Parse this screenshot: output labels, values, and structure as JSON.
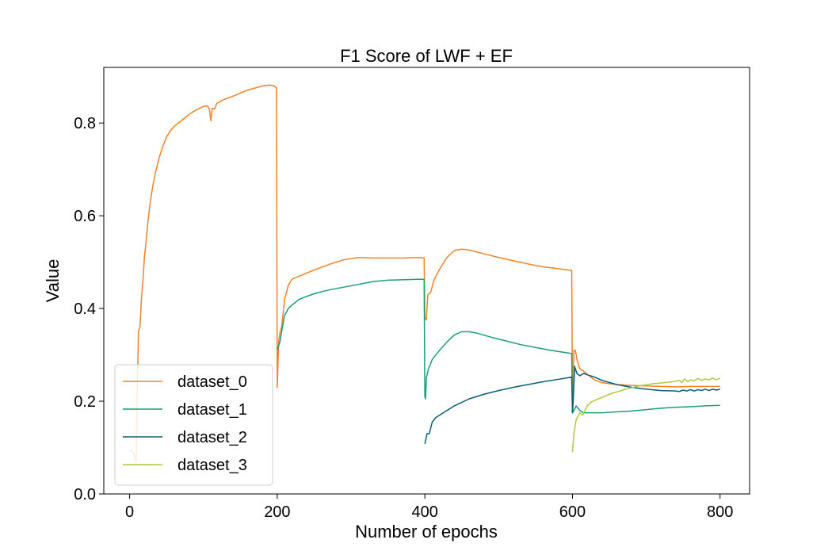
{
  "chart_data": {
    "type": "line",
    "title": "F1 Score of LWF + EF",
    "xlabel": "Number of epochs",
    "ylabel": "Value",
    "xlim": [
      -35,
      840
    ],
    "ylim": [
      0.0,
      0.92
    ],
    "xticks": [
      0,
      200,
      400,
      600,
      800
    ],
    "yticks": [
      0.0,
      0.2,
      0.4,
      0.6,
      0.8
    ],
    "xtick_labels": [
      "0",
      "200",
      "400",
      "600",
      "800"
    ],
    "ytick_labels": [
      "0.0",
      "0.2",
      "0.4",
      "0.6",
      "0.8"
    ],
    "grid": false,
    "legend_position": "lower-left",
    "series": [
      {
        "name": "dataset_0",
        "color": "#f28226",
        "points": [
          [
            0,
            0.09
          ],
          [
            3,
            0.095
          ],
          [
            6,
            0.085
          ],
          [
            9,
            0.07
          ],
          [
            10,
            0.2
          ],
          [
            12,
            0.35
          ],
          [
            14,
            0.36
          ],
          [
            16,
            0.42
          ],
          [
            18,
            0.46
          ],
          [
            20,
            0.51
          ],
          [
            22,
            0.54
          ],
          [
            25,
            0.59
          ],
          [
            28,
            0.63
          ],
          [
            32,
            0.67
          ],
          [
            36,
            0.7
          ],
          [
            40,
            0.725
          ],
          [
            45,
            0.75
          ],
          [
            50,
            0.77
          ],
          [
            55,
            0.783
          ],
          [
            60,
            0.792
          ],
          [
            70,
            0.805
          ],
          [
            80,
            0.818
          ],
          [
            90,
            0.828
          ],
          [
            100,
            0.836
          ],
          [
            105,
            0.837
          ],
          [
            108,
            0.831
          ],
          [
            110,
            0.805
          ],
          [
            112,
            0.832
          ],
          [
            115,
            0.83
          ],
          [
            118,
            0.842
          ],
          [
            125,
            0.849
          ],
          [
            140,
            0.858
          ],
          [
            160,
            0.871
          ],
          [
            180,
            0.88
          ],
          [
            190,
            0.882
          ],
          [
            196,
            0.88
          ],
          [
            199,
            0.875
          ],
          [
            200,
            0.23
          ],
          [
            202,
            0.33
          ],
          [
            204,
            0.35
          ],
          [
            206,
            0.36
          ],
          [
            210,
            0.42
          ],
          [
            215,
            0.45
          ],
          [
            220,
            0.463
          ],
          [
            230,
            0.47
          ],
          [
            250,
            0.483
          ],
          [
            270,
            0.495
          ],
          [
            290,
            0.505
          ],
          [
            310,
            0.51
          ],
          [
            330,
            0.509
          ],
          [
            350,
            0.509
          ],
          [
            370,
            0.509
          ],
          [
            390,
            0.51
          ],
          [
            399,
            0.509
          ],
          [
            400,
            0.38
          ],
          [
            402,
            0.375
          ],
          [
            404,
            0.43
          ],
          [
            408,
            0.435
          ],
          [
            412,
            0.46
          ],
          [
            420,
            0.485
          ],
          [
            430,
            0.51
          ],
          [
            440,
            0.525
          ],
          [
            450,
            0.528
          ],
          [
            460,
            0.526
          ],
          [
            480,
            0.518
          ],
          [
            500,
            0.51
          ],
          [
            520,
            0.503
          ],
          [
            540,
            0.496
          ],
          [
            560,
            0.49
          ],
          [
            580,
            0.486
          ],
          [
            599,
            0.482
          ],
          [
            600,
            0.2
          ],
          [
            602,
            0.31
          ],
          [
            604,
            0.31
          ],
          [
            606,
            0.29
          ],
          [
            610,
            0.27
          ],
          [
            615,
            0.265
          ],
          [
            620,
            0.258
          ],
          [
            630,
            0.246
          ],
          [
            640,
            0.24
          ],
          [
            660,
            0.236
          ],
          [
            680,
            0.234
          ],
          [
            700,
            0.233
          ],
          [
            720,
            0.232
          ],
          [
            740,
            0.231
          ],
          [
            760,
            0.232
          ],
          [
            780,
            0.232
          ],
          [
            800,
            0.232
          ]
        ]
      },
      {
        "name": "dataset_1",
        "color": "#1a9e78",
        "points": [
          [
            200,
            0.31
          ],
          [
            202,
            0.32
          ],
          [
            204,
            0.33
          ],
          [
            207,
            0.36
          ],
          [
            210,
            0.385
          ],
          [
            215,
            0.4
          ],
          [
            222,
            0.41
          ],
          [
            230,
            0.42
          ],
          [
            250,
            0.432
          ],
          [
            270,
            0.44
          ],
          [
            290,
            0.446
          ],
          [
            310,
            0.452
          ],
          [
            330,
            0.458
          ],
          [
            350,
            0.461
          ],
          [
            370,
            0.462
          ],
          [
            390,
            0.463
          ],
          [
            399,
            0.463
          ],
          [
            400,
            0.21
          ],
          [
            401,
            0.205
          ],
          [
            402,
            0.25
          ],
          [
            405,
            0.27
          ],
          [
            410,
            0.29
          ],
          [
            415,
            0.3
          ],
          [
            420,
            0.31
          ],
          [
            430,
            0.328
          ],
          [
            440,
            0.343
          ],
          [
            450,
            0.35
          ],
          [
            460,
            0.35
          ],
          [
            470,
            0.347
          ],
          [
            490,
            0.338
          ],
          [
            510,
            0.33
          ],
          [
            530,
            0.322
          ],
          [
            550,
            0.316
          ],
          [
            570,
            0.31
          ],
          [
            590,
            0.305
          ],
          [
            599,
            0.303
          ],
          [
            600,
            0.175
          ],
          [
            602,
            0.18
          ],
          [
            605,
            0.19
          ],
          [
            610,
            0.18
          ],
          [
            615,
            0.175
          ],
          [
            620,
            0.175
          ],
          [
            640,
            0.175
          ],
          [
            660,
            0.177
          ],
          [
            680,
            0.179
          ],
          [
            700,
            0.182
          ],
          [
            720,
            0.185
          ],
          [
            740,
            0.187
          ],
          [
            760,
            0.188
          ],
          [
            780,
            0.19
          ],
          [
            800,
            0.191
          ]
        ]
      },
      {
        "name": "dataset_2",
        "color": "#0b5e73",
        "points": [
          [
            400,
            0.108
          ],
          [
            403,
            0.13
          ],
          [
            406,
            0.13
          ],
          [
            410,
            0.155
          ],
          [
            415,
            0.165
          ],
          [
            425,
            0.175
          ],
          [
            440,
            0.19
          ],
          [
            460,
            0.205
          ],
          [
            480,
            0.215
          ],
          [
            500,
            0.223
          ],
          [
            520,
            0.23
          ],
          [
            540,
            0.236
          ],
          [
            560,
            0.242
          ],
          [
            580,
            0.247
          ],
          [
            599,
            0.252
          ],
          [
            600,
            0.175
          ],
          [
            601,
            0.2
          ],
          [
            603,
            0.275
          ],
          [
            606,
            0.26
          ],
          [
            610,
            0.255
          ],
          [
            615,
            0.26
          ],
          [
            620,
            0.257
          ],
          [
            630,
            0.252
          ],
          [
            640,
            0.245
          ],
          [
            660,
            0.236
          ],
          [
            680,
            0.23
          ],
          [
            700,
            0.226
          ],
          [
            720,
            0.223
          ],
          [
            740,
            0.222
          ],
          [
            745,
            0.221
          ],
          [
            750,
            0.224
          ],
          [
            755,
            0.222
          ],
          [
            760,
            0.225
          ],
          [
            765,
            0.222
          ],
          [
            770,
            0.225
          ],
          [
            775,
            0.223
          ],
          [
            780,
            0.226
          ],
          [
            785,
            0.223
          ],
          [
            790,
            0.226
          ],
          [
            795,
            0.224
          ],
          [
            800,
            0.226
          ]
        ]
      },
      {
        "name": "dataset_3",
        "color": "#a9cc3d",
        "points": [
          [
            600,
            0.09
          ],
          [
            602,
            0.13
          ],
          [
            605,
            0.16
          ],
          [
            610,
            0.175
          ],
          [
            614,
            0.17
          ],
          [
            620,
            0.19
          ],
          [
            625,
            0.198
          ],
          [
            635,
            0.205
          ],
          [
            650,
            0.215
          ],
          [
            670,
            0.225
          ],
          [
            690,
            0.233
          ],
          [
            710,
            0.238
          ],
          [
            730,
            0.241
          ],
          [
            740,
            0.243
          ],
          [
            745,
            0.245
          ],
          [
            748,
            0.24
          ],
          [
            752,
            0.248
          ],
          [
            756,
            0.242
          ],
          [
            760,
            0.246
          ],
          [
            765,
            0.244
          ],
          [
            770,
            0.249
          ],
          [
            775,
            0.245
          ],
          [
            780,
            0.248
          ],
          [
            785,
            0.246
          ],
          [
            790,
            0.25
          ],
          [
            795,
            0.246
          ],
          [
            800,
            0.25
          ]
        ]
      }
    ]
  }
}
